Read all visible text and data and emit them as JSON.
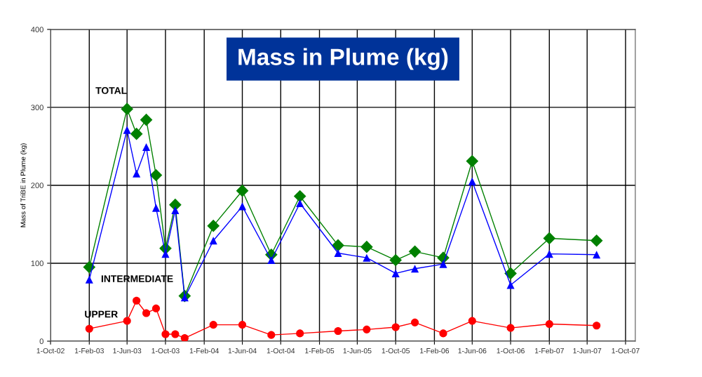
{
  "chart_data": {
    "type": "line",
    "title": "Mass in Plume (kg)",
    "ylabel": "Mass of TriBE in Plume (kg)",
    "x": [
      "2003-02-01",
      "2003-06-01",
      "2003-07-01",
      "2003-08-01",
      "2003-09-01",
      "2003-10-01",
      "2003-11-01",
      "2003-12-01",
      "2004-03-01",
      "2004-06-01",
      "2004-09-01",
      "2004-12-01",
      "2005-04-01",
      "2005-07-01",
      "2005-10-01",
      "2005-12-01",
      "2006-03-01",
      "2006-06-01",
      "2006-10-01",
      "2007-02-01",
      "2007-07-01"
    ],
    "series": [
      {
        "name": "TOTAL",
        "color": "#008000",
        "marker": "diamond",
        "values": [
          95,
          298,
          266,
          284,
          213,
          119,
          175,
          58,
          148,
          193,
          111,
          186,
          123,
          121,
          104,
          115,
          107,
          231,
          87,
          132,
          129
        ]
      },
      {
        "name": "INTERMEDIATE",
        "color": "#0000ff",
        "marker": "triangle",
        "values": [
          79,
          271,
          215,
          249,
          171,
          112,
          168,
          56,
          129,
          173,
          104,
          177,
          113,
          107,
          87,
          93,
          99,
          205,
          72,
          112,
          111
        ]
      },
      {
        "name": "UPPER",
        "color": "#ff0000",
        "marker": "circle",
        "values": [
          16,
          26,
          52,
          36,
          42,
          9,
          9,
          4,
          21,
          21,
          8,
          10,
          13,
          15,
          18,
          24,
          10,
          26,
          17,
          22,
          20
        ]
      }
    ],
    "xlim": [
      "2002-10-01",
      "2007-11-01"
    ],
    "xticks": [
      {
        "value": "2002-10-01",
        "label": "1-Oct-02"
      },
      {
        "value": "2003-02-01",
        "label": "1-Feb-03"
      },
      {
        "value": "2003-06-01",
        "label": "1-Jun-03"
      },
      {
        "value": "2003-10-01",
        "label": "1-Oct-03"
      },
      {
        "value": "2004-02-01",
        "label": "1-Feb-04"
      },
      {
        "value": "2004-06-01",
        "label": "1-Jun-04"
      },
      {
        "value": "2004-10-01",
        "label": "1-Oct-04"
      },
      {
        "value": "2005-02-01",
        "label": "1-Feb-05"
      },
      {
        "value": "2005-06-01",
        "label": "1-Jun-05"
      },
      {
        "value": "2005-10-01",
        "label": "1-Oct-05"
      },
      {
        "value": "2006-02-01",
        "label": "1-Feb-06"
      },
      {
        "value": "2006-06-01",
        "label": "1-Jun-06"
      },
      {
        "value": "2006-10-01",
        "label": "1-Oct-06"
      },
      {
        "value": "2007-02-01",
        "label": "1-Feb-07"
      },
      {
        "value": "2007-06-01",
        "label": "1-Jun-07"
      },
      {
        "value": "2007-10-01",
        "label": "1-Oct-07"
      }
    ],
    "ylim": [
      0,
      400
    ],
    "yticks": [
      0,
      100,
      200,
      300,
      400
    ],
    "grid": true,
    "line_style": "solid",
    "legend": false
  }
}
